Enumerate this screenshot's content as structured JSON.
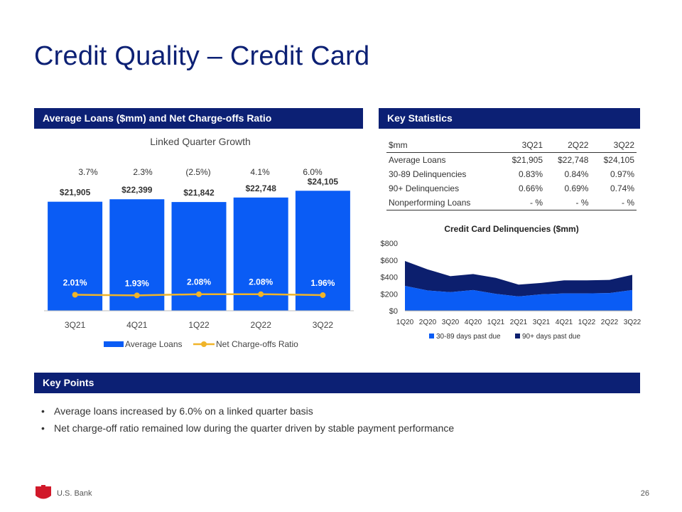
{
  "title": "Credit Quality – Credit Card",
  "sections": {
    "left": "Average Loans ($mm) and Net Charge-offs Ratio",
    "right": "Key Statistics",
    "points": "Key Points"
  },
  "subhead": "Linked Quarter Growth",
  "growth": [
    "3.7%",
    "2.3%",
    "(2.5%)",
    "4.1%",
    "6.0%"
  ],
  "stats": {
    "headers": [
      "$mm",
      "3Q21",
      "2Q22",
      "3Q22"
    ],
    "rows": [
      [
        "Average Loans",
        "$21,905",
        "$22,748",
        "$24,105"
      ],
      [
        "30-89 Delinquencies",
        "0.83%",
        "0.84%",
        "0.97%"
      ],
      [
        "90+ Delinquencies",
        "0.66%",
        "0.69%",
        "0.74%"
      ],
      [
        "Nonperforming Loans",
        "- %",
        "- %",
        "- %"
      ]
    ]
  },
  "key_points": [
    "Average loans increased by 6.0% on a linked quarter basis",
    "Net charge-off ratio remained low during the quarter driven by stable payment performance"
  ],
  "footer": {
    "brand": "U.S. Bank",
    "page": "26"
  },
  "colors": {
    "navy": "#0c2074",
    "blue": "#0a5cf5",
    "gold": "#f0b429",
    "dark": "#0c1f6e"
  },
  "chart_data": [
    {
      "type": "bar",
      "categories": [
        "3Q21",
        "4Q21",
        "1Q22",
        "2Q22",
        "3Q22"
      ],
      "series": [
        {
          "name": "Average Loans",
          "type": "bar",
          "values": [
            21905,
            22399,
            21842,
            22748,
            24105
          ],
          "labels": [
            "$21,905",
            "$22,399",
            "$21,842",
            "$22,748",
            "$24,105"
          ]
        },
        {
          "name": "Net Charge-offs Ratio",
          "type": "line",
          "values": [
            2.01,
            1.93,
            2.08,
            2.08,
            1.96
          ],
          "labels": [
            "2.01%",
            "1.93%",
            "2.08%",
            "2.08%",
            "1.96%"
          ]
        }
      ],
      "ylim": [
        0,
        26000
      ],
      "ratio_ylim": [
        0,
        10
      ],
      "legend": "bottom"
    },
    {
      "type": "area",
      "title": "Credit Card Delinquencies ($mm)",
      "x": [
        "1Q20",
        "2Q20",
        "3Q20",
        "4Q20",
        "1Q21",
        "2Q21",
        "3Q21",
        "4Q21",
        "1Q22",
        "2Q22",
        "3Q22"
      ],
      "series": [
        {
          "name": "30-89 days past due",
          "values": [
            295,
            240,
            220,
            245,
            200,
            170,
            195,
            205,
            205,
            210,
            245
          ]
        },
        {
          "name": "90+ days past due",
          "values": [
            295,
            250,
            190,
            190,
            190,
            140,
            135,
            155,
            155,
            155,
            180
          ]
        }
      ],
      "yticks": [
        "$0",
        "$200",
        "$400",
        "$600",
        "$800"
      ],
      "ylim": [
        0,
        800
      ],
      "stacked": true,
      "legend": "bottom"
    }
  ]
}
